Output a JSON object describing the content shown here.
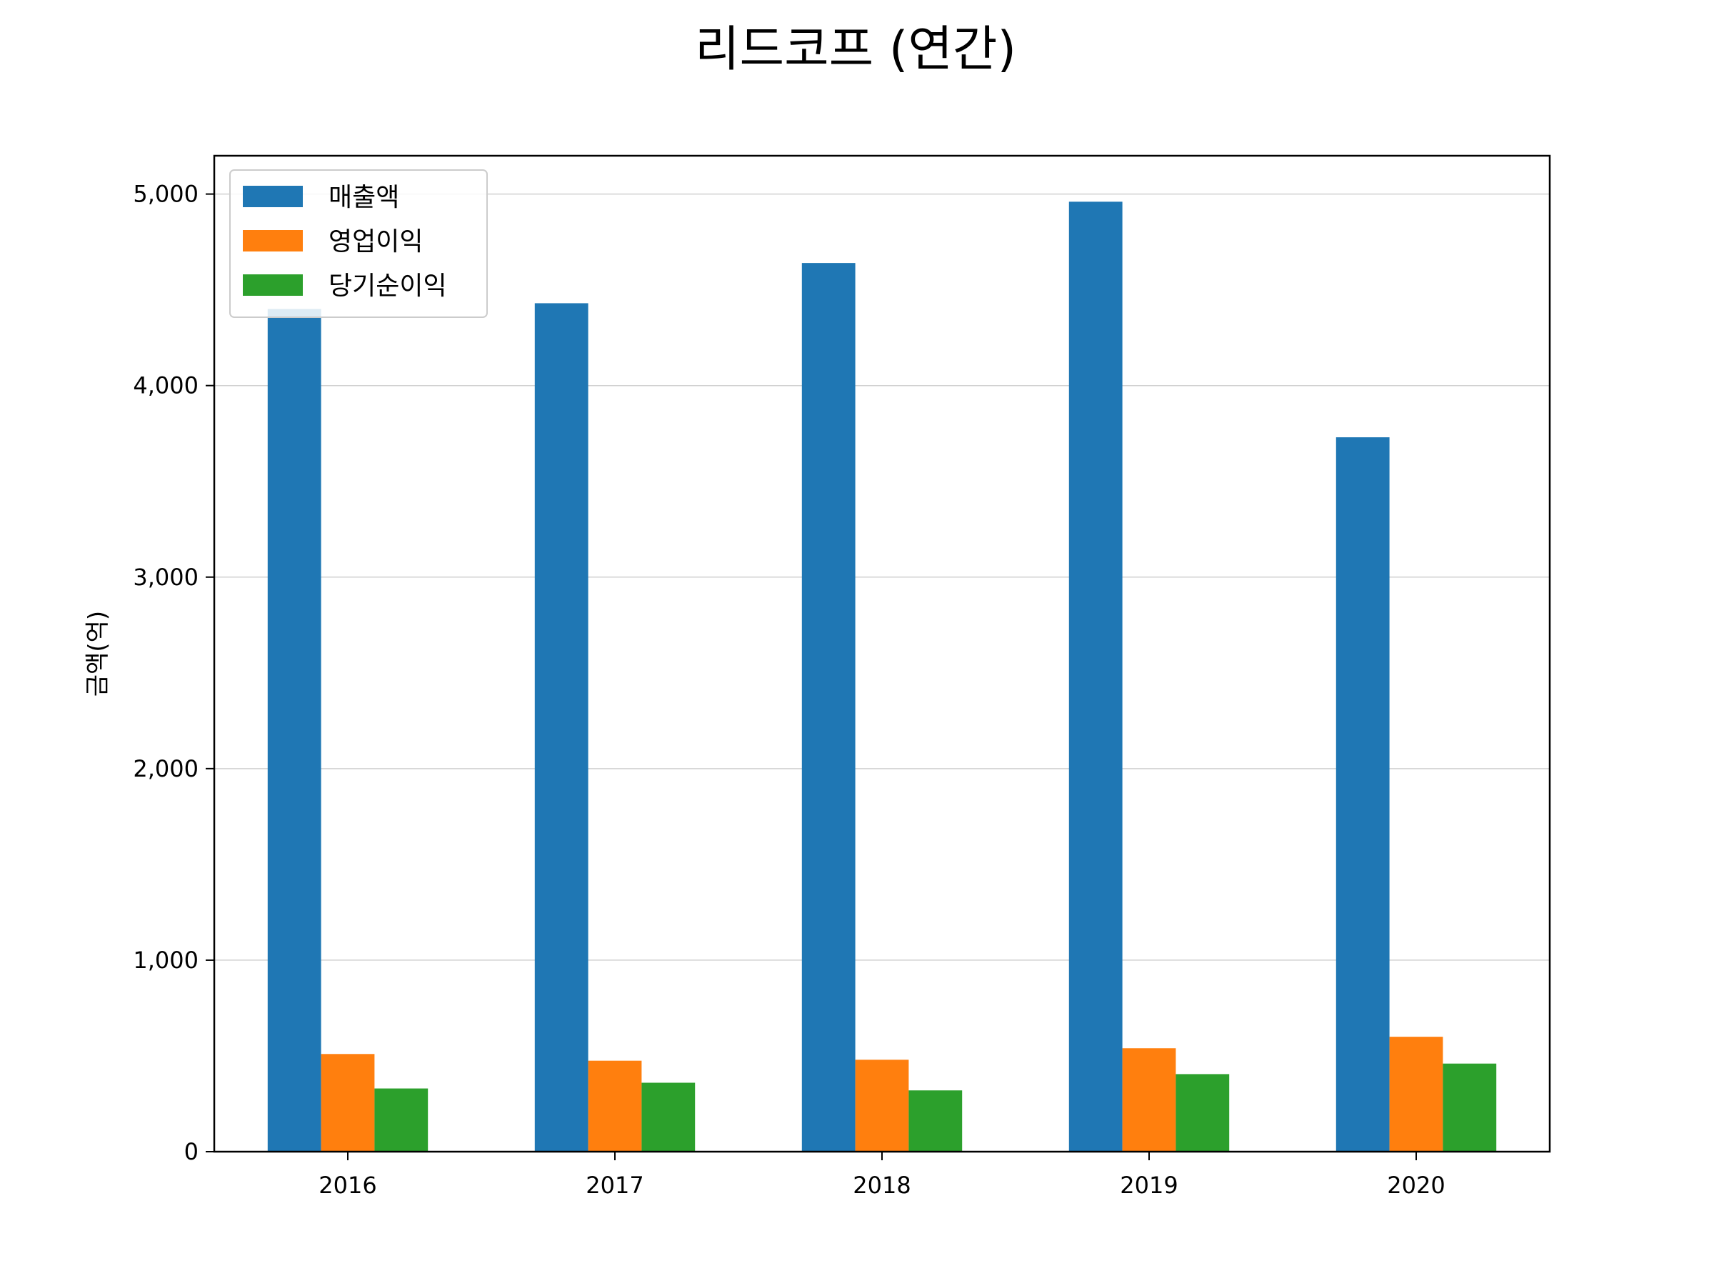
{
  "chart_data": {
    "type": "bar",
    "title": "리드코프 (연간)",
    "xlabel": "",
    "ylabel": "금액(억)",
    "categories": [
      "2016",
      "2017",
      "2018",
      "2019",
      "2020"
    ],
    "series": [
      {
        "name": "매출액",
        "color": "#1f77b4",
        "values": [
          4400,
          4430,
          4640,
          4960,
          3730
        ]
      },
      {
        "name": "영업이익",
        "color": "#ff7f0e",
        "values": [
          510,
          475,
          480,
          540,
          600
        ]
      },
      {
        "name": "당기순이익",
        "color": "#2ca02c",
        "values": [
          330,
          360,
          320,
          405,
          460
        ]
      }
    ],
    "ylim": [
      0,
      5200
    ],
    "yticks": [
      0,
      1000,
      2000,
      3000,
      4000,
      5000
    ],
    "ytick_labels": [
      "0",
      "1,000",
      "2,000",
      "3,000",
      "4,000",
      "5,000"
    ],
    "grid": "horizontal",
    "legend_position": "upper-left"
  }
}
